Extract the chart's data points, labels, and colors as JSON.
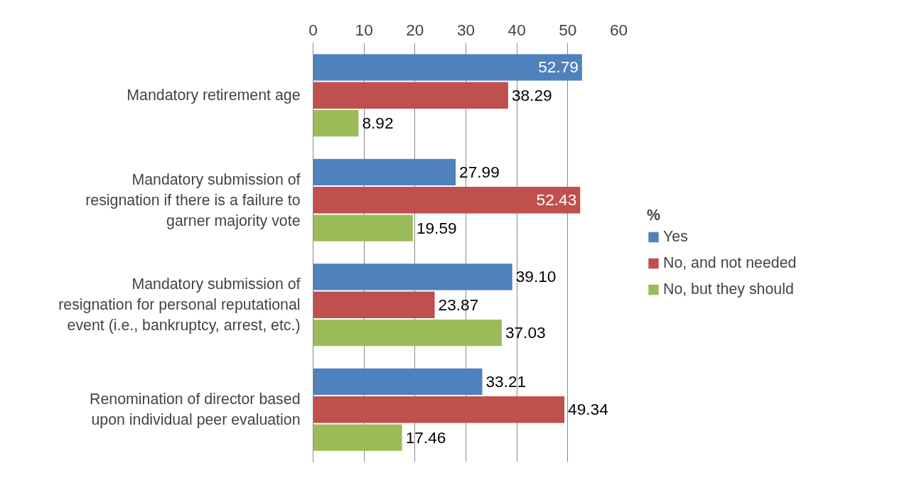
{
  "chart_data": {
    "type": "bar",
    "orientation": "horizontal",
    "categories": [
      "Mandatory retirement age",
      "Mandatory submission of\nresignation if there is a failure to\ngarner majority vote",
      "Mandatory submission of\nresignation for personal reputational\nevent (i.e., bankruptcy, arrest, etc.)",
      "Renomination of director based\nupon individual peer evaluation"
    ],
    "series": [
      {
        "name": "Yes",
        "color": "#4f81bd",
        "values": [
          52.79,
          27.99,
          39.1,
          33.21
        ],
        "value_labels": [
          "52.79",
          "27.99",
          "39.10",
          "33.21"
        ]
      },
      {
        "name": "No, and not needed",
        "color": "#c0504d",
        "values": [
          38.29,
          52.43,
          23.87,
          49.34
        ],
        "value_labels": [
          "38.29",
          "52.43",
          "23.87",
          "49.34"
        ]
      },
      {
        "name": "No, but they should",
        "color": "#9bbb59",
        "values": [
          8.92,
          19.59,
          37.03,
          17.46
        ],
        "value_labels": [
          "8.92",
          "19.59",
          "37.03",
          "17.46"
        ]
      }
    ],
    "xlim": [
      0,
      60
    ],
    "xticks": [
      0,
      10,
      20,
      30,
      40,
      50,
      60
    ],
    "grid": "x",
    "legend": "right",
    "legend_title": "%"
  }
}
